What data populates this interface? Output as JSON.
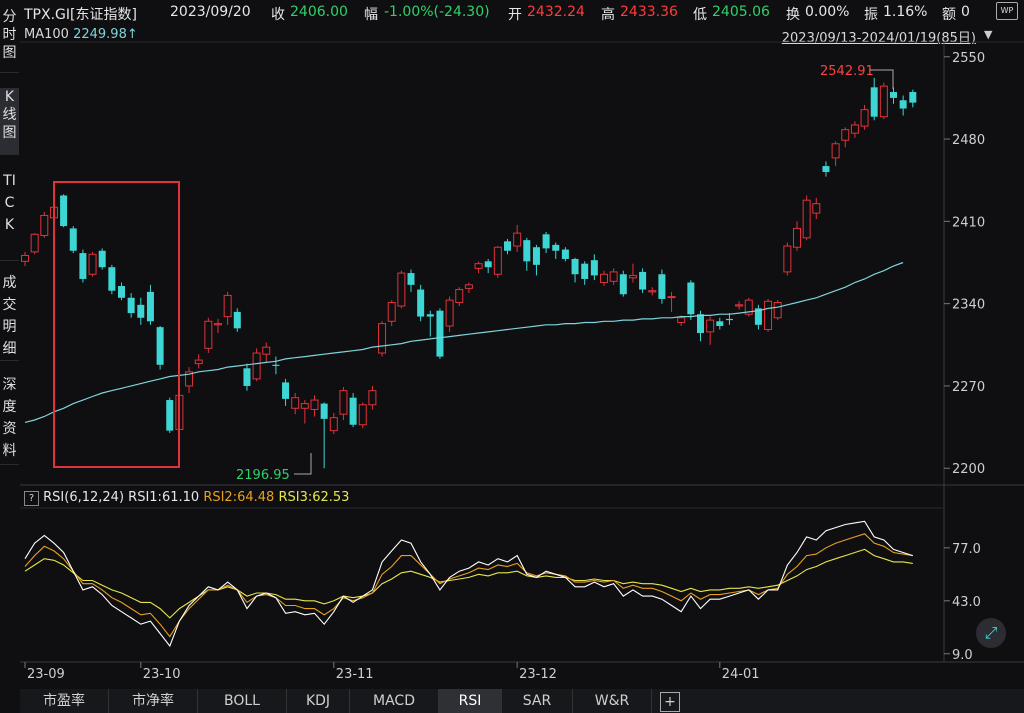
{
  "header": {
    "symbol": "TPX.GI[东证指数]",
    "date": "2023/09/20",
    "close_label": "收",
    "close": "2406.00",
    "change_label": "幅",
    "change": "-1.00%(-24.30)",
    "open_label": "开",
    "open": "2432.24",
    "high_label": "高",
    "high": "2433.36",
    "low_label": "低",
    "low": "2405.06",
    "turnover_label": "换",
    "turnover": "0.00%",
    "amplitude_label": "振",
    "amplitude": "1.16%",
    "amount_label": "额",
    "amount": "0"
  },
  "sidebar": [
    {
      "label": "分时图"
    },
    {
      "label": "K线图"
    },
    {
      "label": "TICK"
    },
    {
      "label": "成交明细"
    },
    {
      "label": "深度资料"
    }
  ],
  "ma": {
    "label": "MA100",
    "value": "2249.98",
    "arrow": "↑"
  },
  "range_label": "2023/09/13-2024/01/19(85日)",
  "range_arrow": "▼",
  "rsi_info": {
    "question": "?",
    "name": "RSI(6,12,24)",
    "rsi1_label": "RSI1:",
    "rsi1": "61.10",
    "rsi2_label": "RSI2:",
    "rsi2": "64.48",
    "rsi3_label": "RSI3:",
    "rsi3": "62.53"
  },
  "annotations": {
    "high": "2542.91",
    "low": "2196.95"
  },
  "bottom_tabs": [
    "市盈率",
    "市净率",
    "BOLL",
    "KDJ",
    "MACD",
    "RSI",
    "SAR",
    "W&R",
    "+"
  ],
  "active_tab": "RSI",
  "colors": {
    "up": "#e0323a",
    "down": "#3ed6d4",
    "ma": "#7fd3dc",
    "rsi1": "#ffffff",
    "rsi2": "#e8a020",
    "rsi3": "#e6e64a",
    "box": "#e0323a"
  },
  "chart_data": {
    "type": "candlestick",
    "y_ticks": [
      2200,
      2270,
      2340,
      2410,
      2480,
      2550
    ],
    "ylim": [
      2190,
      2560
    ],
    "x_ticks": [
      {
        "label": "23-09",
        "index": 0
      },
      {
        "label": "23-10",
        "index": 12
      },
      {
        "label": "23-11",
        "index": 32
      },
      {
        "label": "23-12",
        "index": 51
      },
      {
        "label": "24-01",
        "index": 72
      }
    ],
    "candles": [
      [
        2376,
        2381,
        2372,
        2384
      ],
      [
        2384,
        2399,
        2382,
        2400
      ],
      [
        2398,
        2415,
        2396,
        2418
      ],
      [
        2413,
        2422,
        2409,
        2428
      ],
      [
        2432,
        2406,
        2405,
        2433
      ],
      [
        2404,
        2385,
        2383,
        2406
      ],
      [
        2383,
        2361,
        2358,
        2386
      ],
      [
        2365,
        2382,
        2363,
        2384
      ],
      [
        2385,
        2371,
        2369,
        2387
      ],
      [
        2371,
        2351,
        2348,
        2373
      ],
      [
        2355,
        2345,
        2343,
        2358
      ],
      [
        2345,
        2332,
        2328,
        2349
      ],
      [
        2339,
        2328,
        2322,
        2345
      ],
      [
        2350,
        2325,
        2322,
        2356
      ],
      [
        2320,
        2288,
        2284,
        2321
      ],
      [
        2258,
        2232,
        2230,
        2260
      ],
      [
        2233,
        2262,
        2230,
        2268
      ],
      [
        2270,
        2282,
        2264,
        2286
      ],
      [
        2289,
        2292,
        2285,
        2297
      ],
      [
        2302,
        2325,
        2298,
        2328
      ],
      [
        2322,
        2323,
        2315,
        2327
      ],
      [
        2329,
        2347,
        2322,
        2350
      ],
      [
        2333,
        2319,
        2316,
        2336
      ],
      [
        2285,
        2270,
        2266,
        2289
      ],
      [
        2276,
        2298,
        2274,
        2302
      ],
      [
        2297,
        2303,
        2290,
        2307
      ],
      [
        2288,
        2287,
        2280,
        2295
      ],
      [
        2273,
        2259,
        2253,
        2276
      ],
      [
        2251,
        2260,
        2246,
        2264
      ],
      [
        2251,
        2255,
        2238,
        2258
      ],
      [
        2250,
        2258,
        2244,
        2262
      ],
      [
        2255,
        2242,
        2200,
        2256
      ],
      [
        2232,
        2243,
        2229,
        2247
      ],
      [
        2246,
        2266,
        2241,
        2269
      ],
      [
        2260,
        2237,
        2235,
        2264
      ],
      [
        2237,
        2254,
        2234,
        2256
      ],
      [
        2254,
        2266,
        2250,
        2270
      ],
      [
        2298,
        2323,
        2295,
        2325
      ],
      [
        2325,
        2341,
        2321,
        2343
      ],
      [
        2338,
        2366,
        2336,
        2368
      ],
      [
        2366,
        2356,
        2350,
        2369
      ],
      [
        2352,
        2329,
        2325,
        2356
      ],
      [
        2331,
        2329,
        2312,
        2334
      ],
      [
        2334,
        2295,
        2293,
        2336
      ],
      [
        2321,
        2343,
        2316,
        2346
      ],
      [
        2341,
        2352,
        2338,
        2354
      ],
      [
        2353,
        2356,
        2349,
        2358
      ],
      [
        2370,
        2374,
        2366,
        2376
      ],
      [
        2376,
        2371,
        2366,
        2378
      ],
      [
        2365,
        2388,
        2362,
        2389
      ],
      [
        2393,
        2385,
        2382,
        2395
      ],
      [
        2389,
        2400,
        2384,
        2407
      ],
      [
        2394,
        2376,
        2368,
        2396
      ],
      [
        2388,
        2373,
        2364,
        2390
      ],
      [
        2399,
        2387,
        2383,
        2401
      ],
      [
        2390,
        2385,
        2378,
        2392
      ],
      [
        2386,
        2378,
        2376,
        2388
      ],
      [
        2378,
        2365,
        2358,
        2379
      ],
      [
        2374,
        2361,
        2356,
        2376
      ],
      [
        2377,
        2364,
        2360,
        2382
      ],
      [
        2358,
        2365,
        2355,
        2368
      ],
      [
        2359,
        2367,
        2356,
        2370
      ],
      [
        2365,
        2348,
        2346,
        2368
      ],
      [
        2362,
        2364,
        2358,
        2374
      ],
      [
        2367,
        2352,
        2349,
        2370
      ],
      [
        2350,
        2351,
        2347,
        2354
      ],
      [
        2365,
        2344,
        2340,
        2369
      ],
      [
        2346,
        2346,
        2333,
        2350
      ],
      [
        2324,
        2328,
        2321,
        2330
      ],
      [
        2358,
        2331,
        2326,
        2360
      ],
      [
        2331,
        2315,
        2308,
        2334
      ],
      [
        2316,
        2326,
        2305,
        2329
      ],
      [
        2325,
        2321,
        2318,
        2328
      ],
      [
        2327,
        2326,
        2322,
        2332
      ],
      [
        2338,
        2339,
        2335,
        2342
      ],
      [
        2331,
        2343,
        2329,
        2345
      ],
      [
        2336,
        2322,
        2318,
        2339
      ],
      [
        2318,
        2342,
        2316,
        2344
      ],
      [
        2328,
        2341,
        2326,
        2343
      ],
      [
        2367,
        2389,
        2364,
        2392
      ],
      [
        2388,
        2404,
        2385,
        2410
      ],
      [
        2396,
        2428,
        2394,
        2432
      ],
      [
        2417,
        2425,
        2412,
        2430
      ],
      [
        2457,
        2452,
        2448,
        2461
      ],
      [
        2464,
        2476,
        2457,
        2478
      ],
      [
        2479,
        2488,
        2473,
        2490
      ],
      [
        2485,
        2492,
        2481,
        2495
      ],
      [
        2491,
        2505,
        2488,
        2509
      ],
      [
        2524,
        2499,
        2496,
        2532
      ],
      [
        2499,
        2525,
        2497,
        2528
      ],
      [
        2520,
        2515,
        2510,
        2524
      ],
      [
        2513,
        2506,
        2500,
        2517
      ],
      [
        2520,
        2511,
        2507,
        2522
      ]
    ],
    "ma100": [
      2239,
      2241,
      2244,
      2248,
      2251,
      2255,
      2258,
      2261,
      2264,
      2266,
      2268,
      2270,
      2272,
      2274,
      2276,
      2278,
      2279,
      2280,
      2282,
      2283,
      2284,
      2286,
      2287,
      2288,
      2289,
      2290,
      2291,
      2293,
      2294,
      2295,
      2296,
      2297,
      2298,
      2299,
      2300,
      2301,
      2303,
      2304,
      2305,
      2306,
      2308,
      2309,
      2310,
      2311,
      2312,
      2313,
      2314,
      2315,
      2316,
      2317,
      2318,
      2319,
      2320,
      2321,
      2322,
      2322,
      2323,
      2323,
      2324,
      2324,
      2325,
      2325,
      2326,
      2326,
      2327,
      2327,
      2328,
      2328,
      2329,
      2329,
      2330,
      2330,
      2331,
      2331,
      2332,
      2333,
      2334,
      2336,
      2337,
      2339,
      2341,
      2343,
      2345,
      2348,
      2351,
      2354,
      2358,
      2361,
      2365,
      2368,
      2372,
      2375
    ],
    "rsi_ticks": [
      9.0,
      43.0,
      77.0
    ],
    "rsi_ylim": [
      5,
      100
    ],
    "rsi1": [
      70,
      80,
      85,
      80,
      74,
      62,
      50,
      52,
      47,
      40,
      36,
      32,
      28,
      30,
      22,
      14,
      30,
      40,
      46,
      52,
      50,
      55,
      50,
      38,
      46,
      48,
      45,
      35,
      36,
      34,
      35,
      28,
      36,
      46,
      42,
      46,
      50,
      68,
      75,
      82,
      80,
      68,
      60,
      50,
      58,
      62,
      64,
      68,
      66,
      70,
      68,
      72,
      60,
      58,
      62,
      60,
      58,
      52,
      52,
      55,
      52,
      54,
      46,
      50,
      46,
      46,
      44,
      40,
      36,
      46,
      38,
      44,
      44,
      46,
      48,
      50,
      44,
      50,
      50,
      66,
      74,
      84,
      82,
      88,
      90,
      92,
      93,
      94,
      84,
      82,
      76,
      74,
      72
    ],
    "rsi2": [
      65,
      72,
      78,
      75,
      70,
      62,
      54,
      54,
      50,
      45,
      42,
      38,
      34,
      35,
      28,
      20,
      30,
      38,
      44,
      50,
      50,
      53,
      50,
      42,
      46,
      47,
      45,
      40,
      40,
      38,
      38,
      34,
      38,
      45,
      43,
      45,
      48,
      60,
      65,
      72,
      72,
      66,
      60,
      54,
      57,
      59,
      61,
      64,
      63,
      66,
      65,
      67,
      61,
      59,
      61,
      60,
      59,
      55,
      55,
      56,
      55,
      56,
      51,
      53,
      51,
      51,
      49,
      46,
      43,
      48,
      44,
      47,
      47,
      48,
      49,
      50,
      47,
      50,
      51,
      60,
      65,
      72,
      73,
      77,
      80,
      82,
      84,
      86,
      80,
      78,
      74,
      73,
      72
    ],
    "rsi3": [
      62,
      66,
      70,
      69,
      66,
      61,
      56,
      56,
      53,
      50,
      48,
      45,
      42,
      42,
      38,
      32,
      38,
      42,
      46,
      50,
      50,
      52,
      50,
      46,
      48,
      48,
      47,
      44,
      44,
      43,
      43,
      41,
      43,
      46,
      45,
      46,
      48,
      54,
      57,
      61,
      62,
      60,
      58,
      55,
      56,
      57,
      58,
      60,
      59,
      61,
      61,
      62,
      59,
      58,
      59,
      58,
      58,
      56,
      56,
      57,
      56,
      56,
      54,
      55,
      54,
      54,
      53,
      51,
      49,
      51,
      49,
      50,
      50,
      51,
      51,
      52,
      51,
      52,
      53,
      56,
      59,
      63,
      65,
      68,
      70,
      72,
      74,
      76,
      72,
      70,
      68,
      68,
      67
    ]
  }
}
